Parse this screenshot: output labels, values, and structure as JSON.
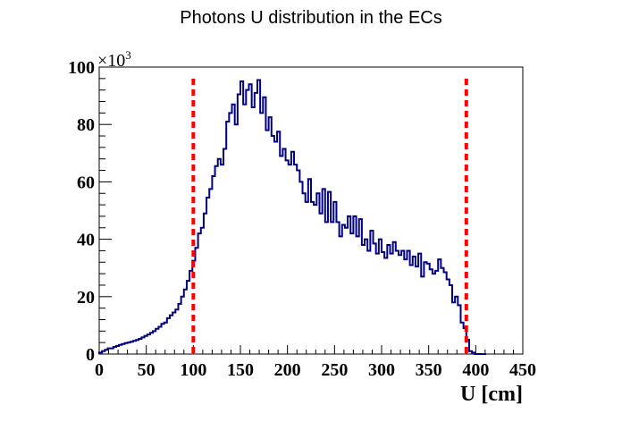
{
  "chart_data": {
    "type": "histogram",
    "title": "Photons U distribution in the ECs",
    "xlabel": "U [cm]",
    "ylabel": "",
    "y_multiplier_label": "×10",
    "y_multiplier_exponent": "3",
    "xlim": [
      0,
      450
    ],
    "ylim": [
      0,
      100000
    ],
    "x_ticks": [
      0,
      50,
      100,
      150,
      200,
      250,
      300,
      350,
      400,
      450
    ],
    "y_ticks": [
      0,
      20,
      40,
      60,
      80,
      100
    ],
    "y_tick_units": 1000,
    "grid": false,
    "legend": "none",
    "bin_width": 3,
    "series": [
      {
        "color": "#000080",
        "values": [
          500,
          1000,
          1500,
          2000,
          2000,
          2500,
          2800,
          3200,
          3500,
          3800,
          4000,
          4300,
          4600,
          4900,
          5300,
          5800,
          6300,
          6800,
          7400,
          8000,
          8800,
          9500,
          10500,
          11000,
          12500,
          13500,
          14500,
          15500,
          17500,
          20000,
          22500,
          25500,
          29000,
          32500,
          37000,
          42000,
          44000,
          49000,
          54500,
          57500,
          62000,
          65500,
          68000,
          66000,
          71500,
          81000,
          84000,
          87000,
          80000,
          90500,
          95000,
          87000,
          92000,
          94000,
          86000,
          91000,
          95500,
          84000,
          89500,
          78000,
          82500,
          76000,
          74000,
          77500,
          69000,
          71500,
          67500,
          66000,
          70500,
          66000,
          64000,
          60000,
          56000,
          53000,
          61000,
          53000,
          52000,
          56000,
          49000,
          57500,
          46000,
          56500,
          46000,
          53000,
          46000,
          41000,
          45000,
          44000,
          48000,
          42000,
          48000,
          41000,
          47000,
          38000,
          40000,
          36000,
          43000,
          38500,
          35000,
          40000,
          35500,
          33500,
          38000,
          35000,
          39000,
          36000,
          34500,
          36000,
          33000,
          36000,
          31000,
          34000,
          30500,
          35000,
          27000,
          32000,
          31500,
          29500,
          28000,
          29000,
          33000,
          30000,
          28500,
          26000,
          24000,
          18000,
          20000,
          17000,
          11000,
          9000,
          5000,
          1000,
          500,
          0,
          0,
          0,
          0
        ]
      }
    ],
    "reference_lines": [
      {
        "x": 100,
        "color": "#ff0000",
        "style": "dashed"
      },
      {
        "x": 390,
        "color": "#ff0000",
        "style": "dashed"
      }
    ]
  }
}
